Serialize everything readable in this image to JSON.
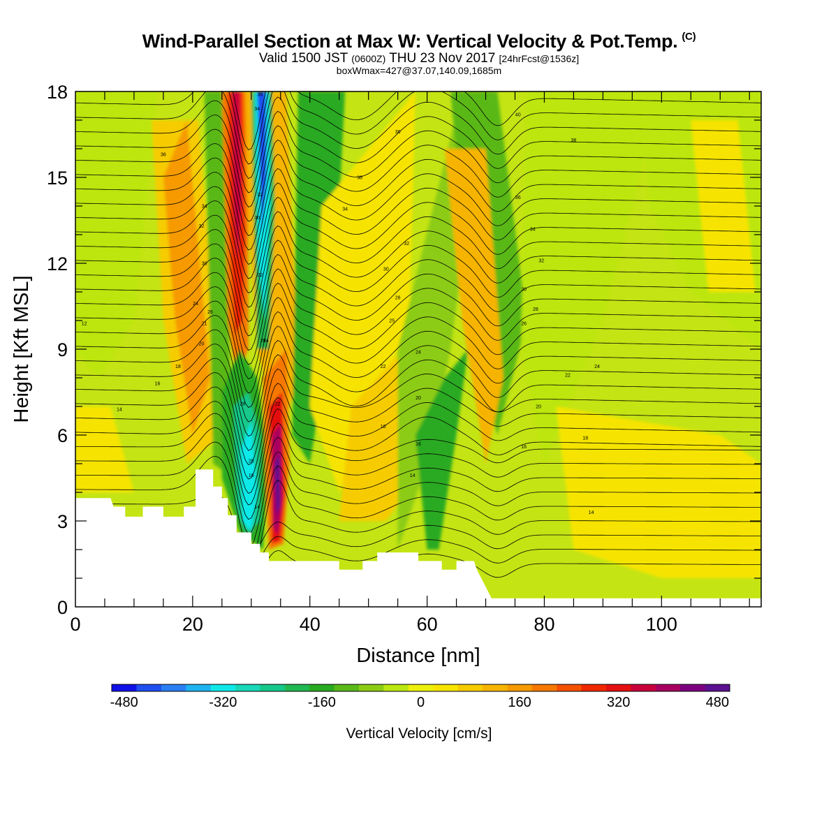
{
  "header": {
    "title": "Wind-Parallel Section at Max W: Vertical Velocity & Pot.Temp.",
    "copyright": "(C)",
    "valid_prefix": "Valid 1500 JST",
    "valid_utc": "(0600Z)",
    "valid_date": "THU 23 Nov 2017",
    "forecast": "[24hrFcst@1536z]",
    "box_info": "boxWmax=427@37.07,140.09,1685m"
  },
  "colorbar": {
    "label": "Vertical Velocity [cm/s]",
    "ticks": [
      "-480",
      "-320",
      "-160",
      "0",
      "160",
      "320",
      "480"
    ],
    "colors": [
      "#1010e8",
      "#1f4ff0",
      "#2a7ff2",
      "#1fb2f0",
      "#10e8e8",
      "#18d8b8",
      "#14c88a",
      "#20b850",
      "#2aaa20",
      "#5ab818",
      "#8ccc14",
      "#bce610",
      "#ecf00c",
      "#f6e400",
      "#f6cc00",
      "#f6b400",
      "#f69a00",
      "#f67800",
      "#f45000",
      "#f02800",
      "#e41010",
      "#c8003c",
      "#a80060",
      "#7c0080",
      "#5a1090"
    ]
  },
  "chart_data": {
    "type": "heatmap",
    "xlabel": "Distance [nm]",
    "ylabel": "Height [Kft MSL]",
    "xlim": [
      0,
      117
    ],
    "ylim": [
      0,
      18
    ],
    "xticks": [
      "0",
      "20",
      "40",
      "60",
      "80",
      "100"
    ],
    "yticks": [
      "0",
      "3",
      "6",
      "9",
      "12",
      "15",
      "18"
    ],
    "field": "Vertical Velocity [cm/s]",
    "contour_field": "Potential Temperature",
    "velocity_features": [
      {
        "x": 27,
        "y_bottom": 8,
        "y_top": 18,
        "peak_cm_s": 320
      },
      {
        "x": 32,
        "y_bottom": 9,
        "y_top": 18,
        "peak_cm_s": -400
      },
      {
        "x": 29,
        "y_bottom": 2.5,
        "y_top": 7,
        "peak_cm_s": -300
      },
      {
        "x": 34,
        "y_bottom": 2.5,
        "y_top": 7,
        "peak_cm_s": 450
      },
      {
        "x": 20,
        "y_bottom": 5,
        "y_top": 16,
        "peak_cm_s": 160
      },
      {
        "x": 63,
        "y_bottom": 2,
        "y_top": 7,
        "peak_cm_s": -160
      }
    ],
    "terrain_kft": [
      [
        0,
        3.8
      ],
      [
        6,
        3.8
      ],
      [
        6.5,
        3.5
      ],
      [
        8.5,
        3.5
      ],
      [
        8.5,
        3.15
      ],
      [
        11.5,
        3.15
      ],
      [
        11.5,
        3.5
      ],
      [
        15,
        3.5
      ],
      [
        15,
        3.15
      ],
      [
        18.5,
        3.15
      ],
      [
        18.5,
        3.5
      ],
      [
        20.5,
        3.5
      ],
      [
        20.5,
        4.8
      ],
      [
        23.5,
        4.8
      ],
      [
        23.5,
        4.2
      ],
      [
        25,
        4.2
      ],
      [
        25,
        3.8
      ],
      [
        26,
        3.8
      ],
      [
        26,
        3.2
      ],
      [
        27.5,
        3.2
      ],
      [
        27.5,
        2.6
      ],
      [
        30,
        2.6
      ],
      [
        30,
        2.2
      ],
      [
        31.5,
        2.2
      ],
      [
        31.5,
        1.9
      ],
      [
        33,
        1.9
      ],
      [
        33,
        1.6
      ],
      [
        45,
        1.6
      ],
      [
        45,
        1.3
      ],
      [
        49,
        1.3
      ],
      [
        49,
        1.6
      ],
      [
        51.5,
        1.6
      ],
      [
        51.5,
        1.9
      ],
      [
        58.5,
        1.9
      ],
      [
        58.5,
        1.6
      ],
      [
        62.5,
        1.6
      ],
      [
        62.5,
        1.3
      ],
      [
        65,
        1.3
      ],
      [
        65,
        1.6
      ],
      [
        68,
        1.6
      ],
      [
        68.5,
        1.3
      ],
      [
        69.5,
        0.9
      ],
      [
        70.5,
        0.5
      ],
      [
        71,
        0.3
      ],
      [
        117,
        0.3
      ]
    ],
    "contour_labels": [
      {
        "x": 1.5,
        "y": 9.9,
        "text": "12"
      },
      {
        "x": 7.5,
        "y": 6.9,
        "text": "14"
      },
      {
        "x": 14,
        "y": 7.8,
        "text": "16"
      },
      {
        "x": 17.5,
        "y": 8.4,
        "text": "18"
      },
      {
        "x": 21.5,
        "y": 9.2,
        "text": "20"
      },
      {
        "x": 22,
        "y": 9.9,
        "text": "21"
      },
      {
        "x": 20.5,
        "y": 10.6,
        "text": "24"
      },
      {
        "x": 23,
        "y": 10.3,
        "text": "26"
      },
      {
        "x": 22,
        "y": 12.0,
        "text": "30"
      },
      {
        "x": 21.5,
        "y": 13.3,
        "text": "32"
      },
      {
        "x": 22,
        "y": 14.0,
        "text": "34"
      },
      {
        "x": 15,
        "y": 15.8,
        "text": "36"
      },
      {
        "x": 31,
        "y": 17.4,
        "text": "34"
      },
      {
        "x": 31.5,
        "y": 17.9,
        "text": "36"
      },
      {
        "x": 31.5,
        "y": 14.4,
        "text": "32"
      },
      {
        "x": 31,
        "y": 13.6,
        "text": "30"
      },
      {
        "x": 31.5,
        "y": 11.6,
        "text": "22"
      },
      {
        "x": 32.5,
        "y": 9.3,
        "text": "24"
      },
      {
        "x": 32,
        "y": 9.3,
        "text": "28"
      },
      {
        "x": 28.5,
        "y": 7.1,
        "text": "28"
      },
      {
        "x": 34.5,
        "y": 7.1,
        "text": "22"
      },
      {
        "x": 30,
        "y": 5.1,
        "text": "20"
      },
      {
        "x": 30,
        "y": 4.6,
        "text": "16"
      },
      {
        "x": 31,
        "y": 3.5,
        "text": "14"
      },
      {
        "x": 55,
        "y": 16.6,
        "text": "36"
      },
      {
        "x": 48.5,
        "y": 15.0,
        "text": "38"
      },
      {
        "x": 46,
        "y": 13.9,
        "text": "34"
      },
      {
        "x": 56.5,
        "y": 12.7,
        "text": "32"
      },
      {
        "x": 53,
        "y": 11.8,
        "text": "30"
      },
      {
        "x": 55,
        "y": 10.8,
        "text": "26"
      },
      {
        "x": 54,
        "y": 10.0,
        "text": "25"
      },
      {
        "x": 58.5,
        "y": 8.9,
        "text": "24"
      },
      {
        "x": 52.5,
        "y": 8.4,
        "text": "22"
      },
      {
        "x": 58.5,
        "y": 7.3,
        "text": "20"
      },
      {
        "x": 52.5,
        "y": 6.3,
        "text": "18"
      },
      {
        "x": 58.5,
        "y": 5.7,
        "text": "16"
      },
      {
        "x": 57.5,
        "y": 4.6,
        "text": "14"
      },
      {
        "x": 75.5,
        "y": 17.2,
        "text": "40"
      },
      {
        "x": 85,
        "y": 16.3,
        "text": "38"
      },
      {
        "x": 75.5,
        "y": 14.3,
        "text": "36"
      },
      {
        "x": 78,
        "y": 13.2,
        "text": "34"
      },
      {
        "x": 79.5,
        "y": 12.1,
        "text": "32"
      },
      {
        "x": 76.5,
        "y": 11.1,
        "text": "30"
      },
      {
        "x": 78.5,
        "y": 10.4,
        "text": "28"
      },
      {
        "x": 76.5,
        "y": 9.9,
        "text": "26"
      },
      {
        "x": 89,
        "y": 8.4,
        "text": "24"
      },
      {
        "x": 84,
        "y": 8.1,
        "text": "22"
      },
      {
        "x": 79,
        "y": 7.0,
        "text": "20"
      },
      {
        "x": 87,
        "y": 5.9,
        "text": "18"
      },
      {
        "x": 76.5,
        "y": 5.6,
        "text": "16"
      },
      {
        "x": 88,
        "y": 3.3,
        "text": "14"
      }
    ]
  }
}
